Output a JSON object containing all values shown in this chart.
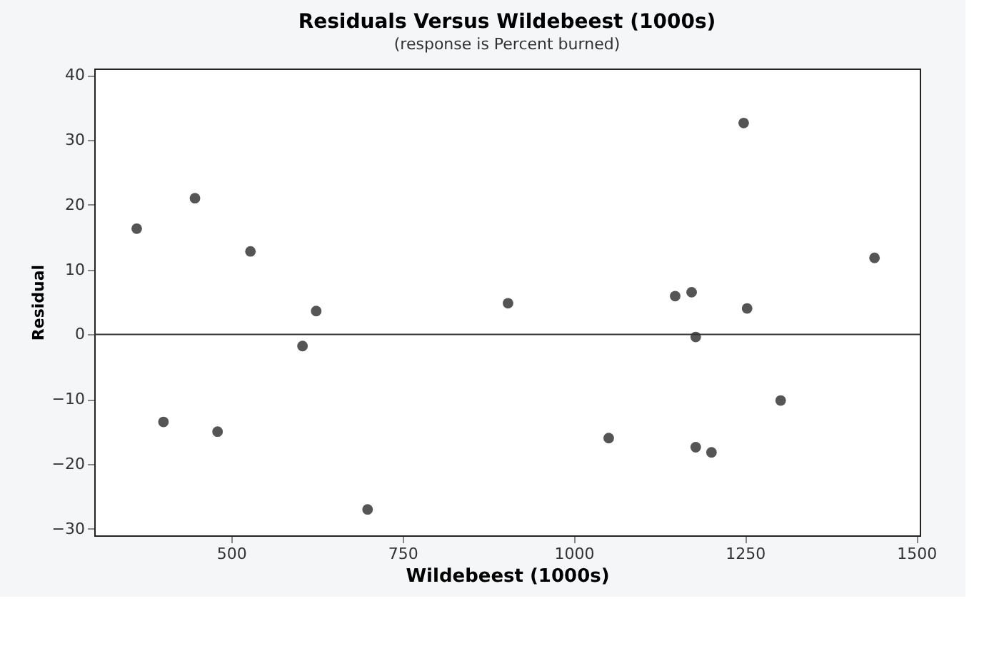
{
  "chart_data": {
    "type": "scatter",
    "title": "Residuals Versus Wildebeest (1000s)",
    "subtitle": "(response is Percent burned)",
    "xlabel": "Wildebeest (1000s)",
    "ylabel": "Residual",
    "x": [
      362,
      401,
      447,
      480,
      528,
      604,
      624,
      699,
      904,
      1051,
      1148,
      1172,
      1178,
      1178,
      1201,
      1248,
      1253,
      1302,
      1439
    ],
    "series": [
      {
        "color": "#555555",
        "values": [
          16.3,
          -13.5,
          21,
          -15,
          12.8,
          -1.8,
          3.6,
          -27,
          4.8,
          -16,
          5.9,
          6.5,
          -0.4,
          -17.4,
          -18.2,
          32.6,
          4,
          -10.2,
          11.8
        ]
      }
    ],
    "xlim": [
      300,
      1505
    ],
    "xticks": [
      500,
      750,
      1000,
      1250,
      1500
    ],
    "ylim": [
      -31,
      41
    ],
    "yticks": [
      -30,
      -20,
      -10,
      0,
      10,
      20,
      30,
      40
    ],
    "ref_lines": [
      {
        "axis": "y",
        "value": 0,
        "color": "#333333"
      }
    ],
    "grid": false,
    "marker": "circle"
  }
}
